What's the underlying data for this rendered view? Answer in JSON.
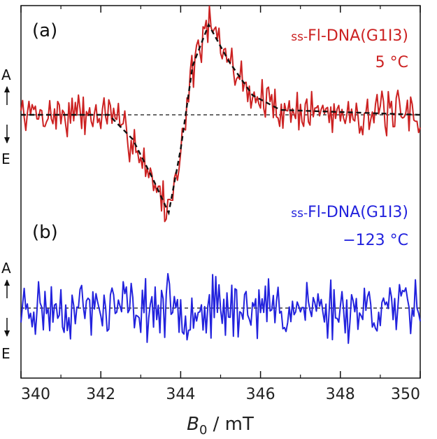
{
  "chart_data": {
    "type": "line",
    "xlabel": "B",
    "xlabel_sub": "0",
    "xlabel_unit": " / mT",
    "xlim": [
      340,
      350
    ],
    "xticks": [
      "340",
      "342",
      "344",
      "346",
      "348",
      "350"
    ],
    "grid": false,
    "panels": [
      {
        "letter": "(a)",
        "name": "ss-Fl-DNA(G1I3)",
        "name_prefix": "ss-",
        "name_main": "Fl-DNA(G1I3)",
        "temperature": "5 °C",
        "color": "#cc2222",
        "fit_color": "#111111",
        "axis_top": "A",
        "axis_bottom": "E",
        "ylim": [
          -1.1,
          1.15
        ],
        "signal_seed": 7,
        "noise_amp": 0.17,
        "fit": {
          "model": "derivative-gaussian",
          "center": 344.1,
          "width": 0.55,
          "amplitude": 1.0,
          "points": [
            {
              "x": 340.0,
              "y": 0.0
            },
            {
              "x": 342.2,
              "y": 0.0
            },
            {
              "x": 342.8,
              "y": -0.25
            },
            {
              "x": 343.3,
              "y": -0.65
            },
            {
              "x": 343.7,
              "y": -1.0
            },
            {
              "x": 344.0,
              "y": -0.35
            },
            {
              "x": 344.3,
              "y": 0.5
            },
            {
              "x": 344.7,
              "y": 0.92
            },
            {
              "x": 345.2,
              "y": 0.55
            },
            {
              "x": 345.8,
              "y": 0.2
            },
            {
              "x": 346.5,
              "y": 0.05
            },
            {
              "x": 350.0,
              "y": 0.0
            }
          ]
        }
      },
      {
        "letter": "(b)",
        "name": "ss-Fl-DNA(G1I3)",
        "name_prefix": "ss-",
        "name_main": "Fl-DNA(G1I3)",
        "temperature": "−123 °C",
        "color": "#2222dd",
        "axis_top": "A",
        "axis_bottom": "E",
        "ylim": [
          -1.1,
          1.15
        ],
        "signal_seed": 23,
        "noise_amp": 0.55,
        "fit": null
      }
    ]
  }
}
